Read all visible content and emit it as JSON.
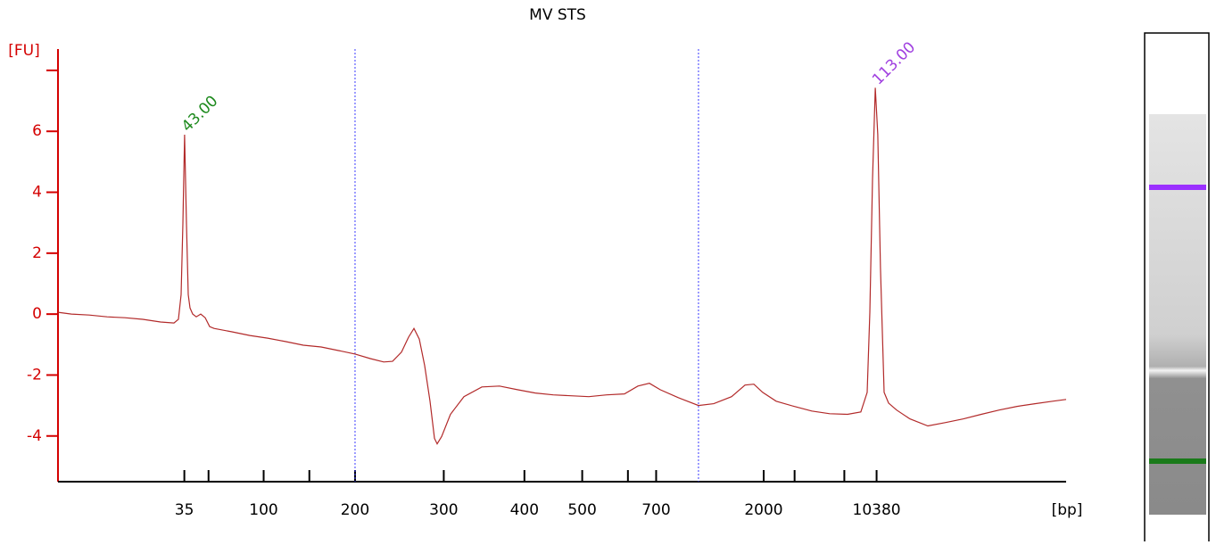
{
  "chart_data": {
    "type": "line",
    "title": "MV STS",
    "y_label": "[FU]",
    "x_label": "[bp]",
    "color": "#b22a2a",
    "axis_color": "#d40000",
    "marker_color": "#3a3aff",
    "xlim": [
      40,
      115
    ],
    "ylim": [
      -5.5,
      8.7
    ],
    "xticks": [
      {
        "value": 49.4,
        "label": "35"
      },
      {
        "value": 51.2,
        "label": null
      },
      {
        "value": 55.3,
        "label": "100"
      },
      {
        "value": 58.7,
        "label": null
      },
      {
        "value": 62.1,
        "label": "200"
      },
      {
        "value": 68.7,
        "label": "300"
      },
      {
        "value": 74.7,
        "label": "400"
      },
      {
        "value": 79.0,
        "label": "500"
      },
      {
        "value": 82.4,
        "label": null
      },
      {
        "value": 84.5,
        "label": "700"
      },
      {
        "value": 92.5,
        "label": "2000"
      },
      {
        "value": 94.8,
        "label": null
      },
      {
        "value": 98.5,
        "label": null
      },
      {
        "value": 100.9,
        "label": "10380"
      }
    ],
    "yticks": [
      -4,
      -2,
      0,
      2,
      4,
      6,
      {
        "value": 8,
        "label": null
      }
    ],
    "markers": [
      62.1,
      87.65
    ],
    "annotations": [
      {
        "text": "43.00",
        "x": 49.42,
        "y": 5.89,
        "color": "#1e8a1e"
      },
      {
        "text": "113.00",
        "x": 100.8,
        "y": 7.43,
        "color": "#a040e0"
      }
    ],
    "x": [
      40.0,
      41.0,
      42.32,
      43.65,
      44.98,
      46.31,
      47.63,
      48.63,
      48.96,
      49.16,
      49.29,
      49.42,
      49.56,
      49.69,
      49.82,
      50.02,
      50.29,
      50.62,
      50.95,
      51.28,
      51.61,
      52.94,
      54.27,
      55.6,
      56.92,
      58.25,
      59.58,
      60.91,
      62.1,
      63.23,
      64.23,
      64.89,
      65.55,
      66.08,
      66.48,
      66.88,
      67.28,
      67.68,
      68.01,
      68.21,
      68.54,
      69.2,
      70.2,
      71.53,
      72.85,
      74.18,
      75.51,
      76.84,
      78.16,
      79.49,
      80.82,
      82.14,
      83.14,
      84.0,
      84.8,
      86.13,
      87.65,
      88.78,
      90.11,
      91.11,
      91.77,
      92.43,
      93.43,
      94.76,
      96.08,
      97.41,
      98.74,
      99.73,
      100.2,
      100.4,
      100.6,
      100.8,
      100.99,
      101.19,
      101.46,
      101.79,
      102.39,
      103.38,
      104.71,
      106.04,
      107.37,
      108.69,
      110.02,
      111.35,
      112.68,
      114.0,
      115.0
    ],
    "values": [
      0.06,
      0,
      -0.03,
      -0.09,
      -0.12,
      -0.17,
      -0.26,
      -0.29,
      -0.17,
      0.64,
      2.97,
      5.89,
      2.97,
      0.64,
      0.2,
      0,
      -0.09,
      0,
      -0.12,
      -0.41,
      -0.47,
      -0.58,
      -0.7,
      -0.79,
      -0.9,
      -1.02,
      -1.08,
      -1.2,
      -1.31,
      -1.46,
      -1.57,
      -1.55,
      -1.25,
      -0.76,
      -0.47,
      -0.82,
      -1.69,
      -2.86,
      -4.08,
      -4.26,
      -4.02,
      -3.29,
      -2.71,
      -2.39,
      -2.36,
      -2.48,
      -2.59,
      -2.65,
      -2.68,
      -2.71,
      -2.65,
      -2.62,
      -2.36,
      -2.27,
      -2.48,
      -2.74,
      -3.0,
      -2.94,
      -2.71,
      -2.33,
      -2.3,
      -2.57,
      -2.86,
      -3.03,
      -3.18,
      -3.27,
      -3.29,
      -3.21,
      -2.57,
      0.06,
      4.43,
      7.43,
      5.89,
      1.52,
      -2.57,
      -2.92,
      -3.15,
      -3.44,
      -3.67,
      -3.56,
      -3.44,
      -3.29,
      -3.15,
      -3.03,
      -2.94,
      -2.86,
      -2.8
    ]
  }
}
